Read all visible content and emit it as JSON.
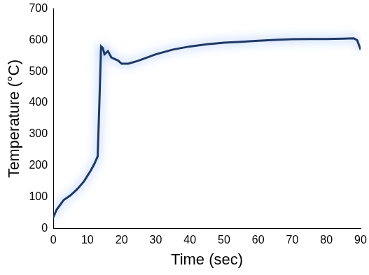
{
  "chart_data": {
    "type": "line",
    "x_label": "Time (sec)",
    "y_label": "Temperature (°C)",
    "x": [
      0,
      1,
      2,
      3,
      5,
      7,
      9,
      11,
      12,
      13,
      13.5,
      14,
      14.5,
      15,
      16,
      17,
      18,
      19,
      20,
      22,
      25,
      30,
      35,
      40,
      45,
      50,
      55,
      60,
      65,
      70,
      75,
      80,
      85,
      88,
      89,
      90
    ],
    "values": [
      35,
      60,
      75,
      90,
      105,
      125,
      150,
      185,
      205,
      230,
      400,
      580,
      575,
      555,
      565,
      545,
      540,
      535,
      525,
      525,
      535,
      555,
      570,
      580,
      587,
      592,
      595,
      598,
      601,
      603,
      604,
      604,
      605,
      606,
      600,
      570
    ],
    "color": "#1f3864",
    "xlim": [
      0,
      90
    ],
    "xticks": [
      0,
      10,
      20,
      30,
      40,
      50,
      60,
      70,
      80,
      90
    ],
    "ylim": [
      0,
      700
    ],
    "yticks": [
      0,
      100,
      200,
      300,
      400,
      500,
      600,
      700
    ],
    "grid": false
  }
}
